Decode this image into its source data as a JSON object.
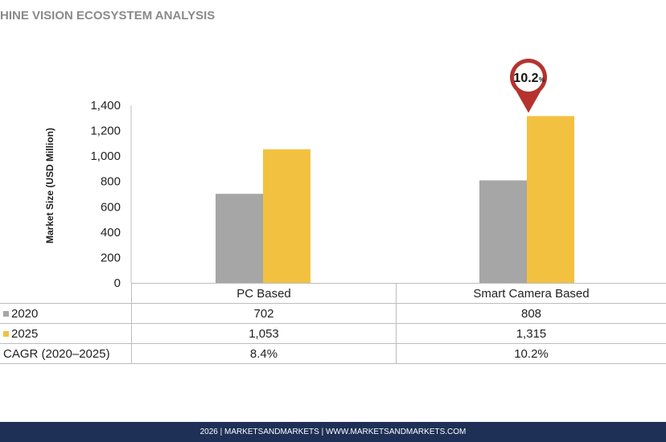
{
  "title": "HINE VISION ECOSYSTEM ANALYSIS",
  "footer": "2026 | MARKETSANDMARKETS | WWW.MARKETSANDMARKETS.COM",
  "chart_data": {
    "type": "bar",
    "ylabel": "Market Size (USD Million)",
    "ylim": [
      0,
      1400
    ],
    "yticks": [
      "0",
      "200",
      "400",
      "600",
      "800",
      "1,000",
      "1,200",
      "1,400"
    ],
    "categories": [
      "PC Based",
      "Smart Camera Based"
    ],
    "series": [
      {
        "name": "2020",
        "values": [
          702,
          808
        ],
        "color": "#a6a6a6",
        "labels": [
          "702",
          "808"
        ]
      },
      {
        "name": "2025",
        "values": [
          1053,
          1315
        ],
        "color": "#f2c140",
        "labels": [
          "1,053",
          "1,315"
        ]
      }
    ],
    "cagr_label": "CAGR (2020–2025)",
    "cagr": [
      "8.4%",
      "10.2%"
    ],
    "annotation": {
      "text": "10.2",
      "suffix": "%",
      "color": "#b5332e"
    },
    "grid": false
  }
}
